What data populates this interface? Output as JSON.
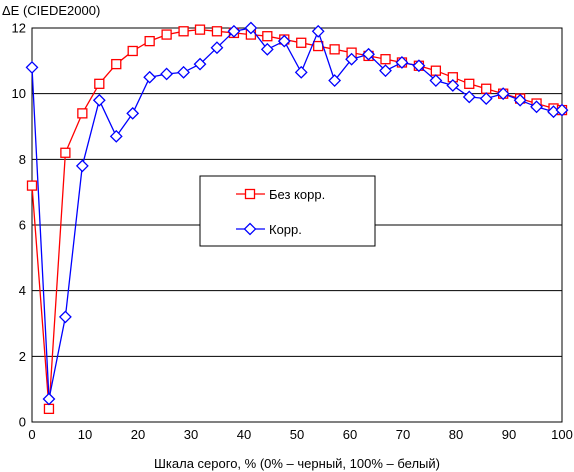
{
  "chart_data": {
    "type": "line",
    "ylabel": "ΔE (CIEDE2000)",
    "xlabel": "Шкала серого, % (0% – черный, 100% – белый)",
    "xlim": [
      0,
      100
    ],
    "ylim": [
      0,
      12
    ],
    "xticks": [
      0,
      10,
      20,
      30,
      40,
      50,
      60,
      70,
      80,
      90,
      100
    ],
    "yticks": [
      0,
      2,
      4,
      6,
      8,
      10,
      12
    ],
    "grid": "horizontal",
    "legend": "center",
    "series": [
      {
        "name": "Без корр.",
        "color": "#ff0000",
        "marker": "square",
        "x": [
          0,
          3.2,
          6.3,
          9.5,
          12.7,
          15.9,
          19.0,
          22.2,
          25.4,
          28.6,
          31.7,
          34.9,
          38.1,
          41.3,
          44.4,
          47.6,
          50.8,
          54.0,
          57.1,
          60.3,
          63.5,
          66.7,
          69.8,
          73.0,
          76.2,
          79.4,
          82.5,
          85.7,
          88.9,
          92.1,
          95.2,
          98.4,
          100
        ],
        "y": [
          7.2,
          0.4,
          8.2,
          9.4,
          10.3,
          10.9,
          11.3,
          11.6,
          11.8,
          11.9,
          11.95,
          11.9,
          11.85,
          11.8,
          11.75,
          11.65,
          11.55,
          11.45,
          11.35,
          11.25,
          11.15,
          11.05,
          10.95,
          10.85,
          10.7,
          10.5,
          10.3,
          10.15,
          10.0,
          9.85,
          9.7,
          9.55,
          9.5
        ]
      },
      {
        "name": "Корр.",
        "color": "#0000ff",
        "marker": "diamond",
        "x": [
          0,
          3.2,
          6.3,
          9.5,
          12.7,
          15.9,
          19.0,
          22.2,
          25.4,
          28.6,
          31.7,
          34.9,
          38.1,
          41.3,
          44.4,
          47.6,
          50.8,
          54.0,
          57.1,
          60.3,
          63.5,
          66.7,
          69.8,
          73.0,
          76.2,
          79.4,
          82.5,
          85.7,
          88.9,
          92.1,
          95.2,
          98.4,
          100
        ],
        "y": [
          10.8,
          0.7,
          3.2,
          7.8,
          9.8,
          8.7,
          9.4,
          10.5,
          10.6,
          10.65,
          10.9,
          11.4,
          11.9,
          12.0,
          11.35,
          11.6,
          10.65,
          11.9,
          10.4,
          11.05,
          11.2,
          10.7,
          10.95,
          10.85,
          10.4,
          10.25,
          9.9,
          9.85,
          10.0,
          9.8,
          9.6,
          9.45,
          9.5
        ]
      }
    ]
  }
}
